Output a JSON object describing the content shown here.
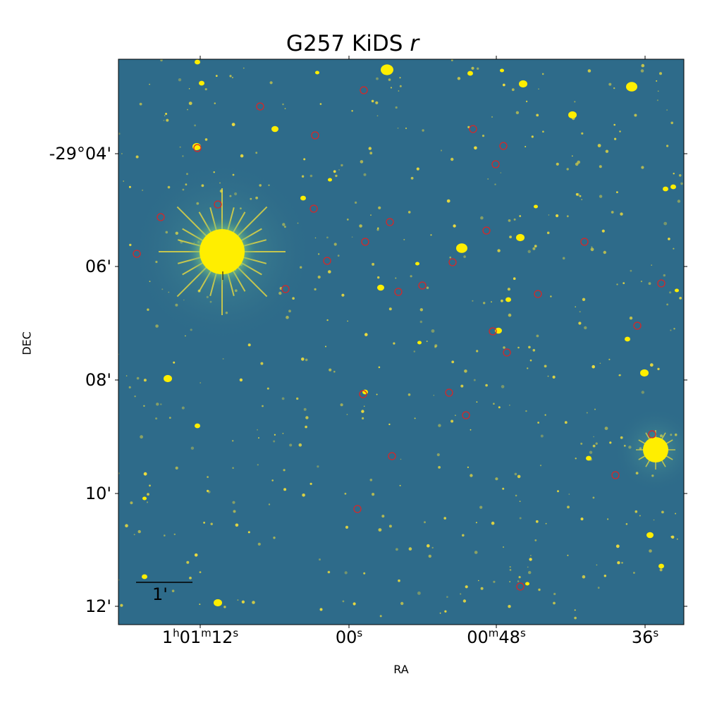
{
  "title": {
    "text": "G257 KiDS ",
    "band": "r"
  },
  "axes": {
    "xlabel": "RA",
    "ylabel": "DEC",
    "y_ticks": [
      "-29°04'",
      "06'",
      "08'",
      "10'",
      "12'"
    ],
    "x_ticks": [
      {
        "h": "1",
        "hu": "h",
        "m": "01",
        "mu": "m",
        "s": "12",
        "su": "s"
      },
      {
        "h": "",
        "hu": "",
        "m": "",
        "mu": "",
        "s": "00",
        "su": "s"
      },
      {
        "h": "",
        "hu": "",
        "m": "00",
        "mu": "m",
        "s": "48",
        "su": "s"
      },
      {
        "h": "",
        "hu": "",
        "m": "",
        "mu": "",
        "s": "36",
        "su": "s"
      }
    ]
  },
  "scale_bar": {
    "label": "1'"
  },
  "colors": {
    "sky_background": "#2e6b8a",
    "source": "#f5e13a",
    "source_core": "#ffee00",
    "marker_ring": "#d62728"
  },
  "image_content": {
    "description_type": "astronomical r-band image",
    "marked_sources_count": 40
  }
}
